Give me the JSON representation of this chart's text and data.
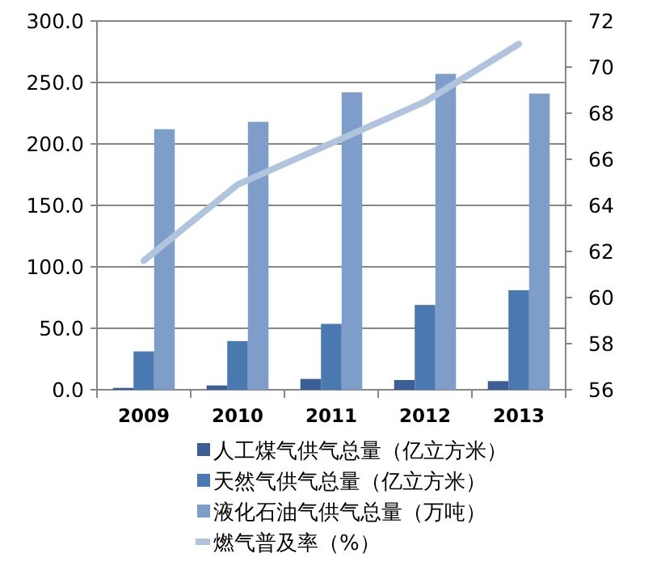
{
  "chart_data": {
    "type": "bar",
    "categories": [
      "2009",
      "2010",
      "2011",
      "2012",
      "2013"
    ],
    "series": [
      {
        "name": "人工煤气供气总量（亿立方米）",
        "color": "#3b5f95",
        "values": [
          1.5,
          3.5,
          8.8,
          7.9,
          7
        ]
      },
      {
        "name": "天然气供气总量（亿立方米）",
        "color": "#4a78b0",
        "values": [
          31.2,
          39.6,
          53.6,
          69,
          81
        ]
      },
      {
        "name": "液化石油气供气总量（万吨）",
        "color": "#7f9dc9",
        "values": [
          212,
          218,
          242,
          257,
          241
        ]
      },
      {
        "name": "燃气普及率（%）",
        "type": "line",
        "axis": "y2",
        "color": "#b0c4de",
        "values": [
          61.6,
          64.9,
          66.7,
          68.5,
          71.0
        ]
      }
    ],
    "ylim": [
      0,
      300
    ],
    "yticks": [
      {
        "value": 0,
        "label": "0.0"
      },
      {
        "value": 50,
        "label": "50.0"
      },
      {
        "value": 100,
        "label": "100.0"
      },
      {
        "value": 150,
        "label": "150.0"
      },
      {
        "value": 200,
        "label": "200.0"
      },
      {
        "value": 250,
        "label": "250.0"
      },
      {
        "value": 300,
        "label": "300.0"
      }
    ],
    "y2lim": [
      56,
      72
    ],
    "y2ticks": [
      56,
      58,
      60,
      62,
      64,
      66,
      68,
      70,
      72
    ],
    "grid": "y",
    "legend": "bottom",
    "marker": "none"
  }
}
